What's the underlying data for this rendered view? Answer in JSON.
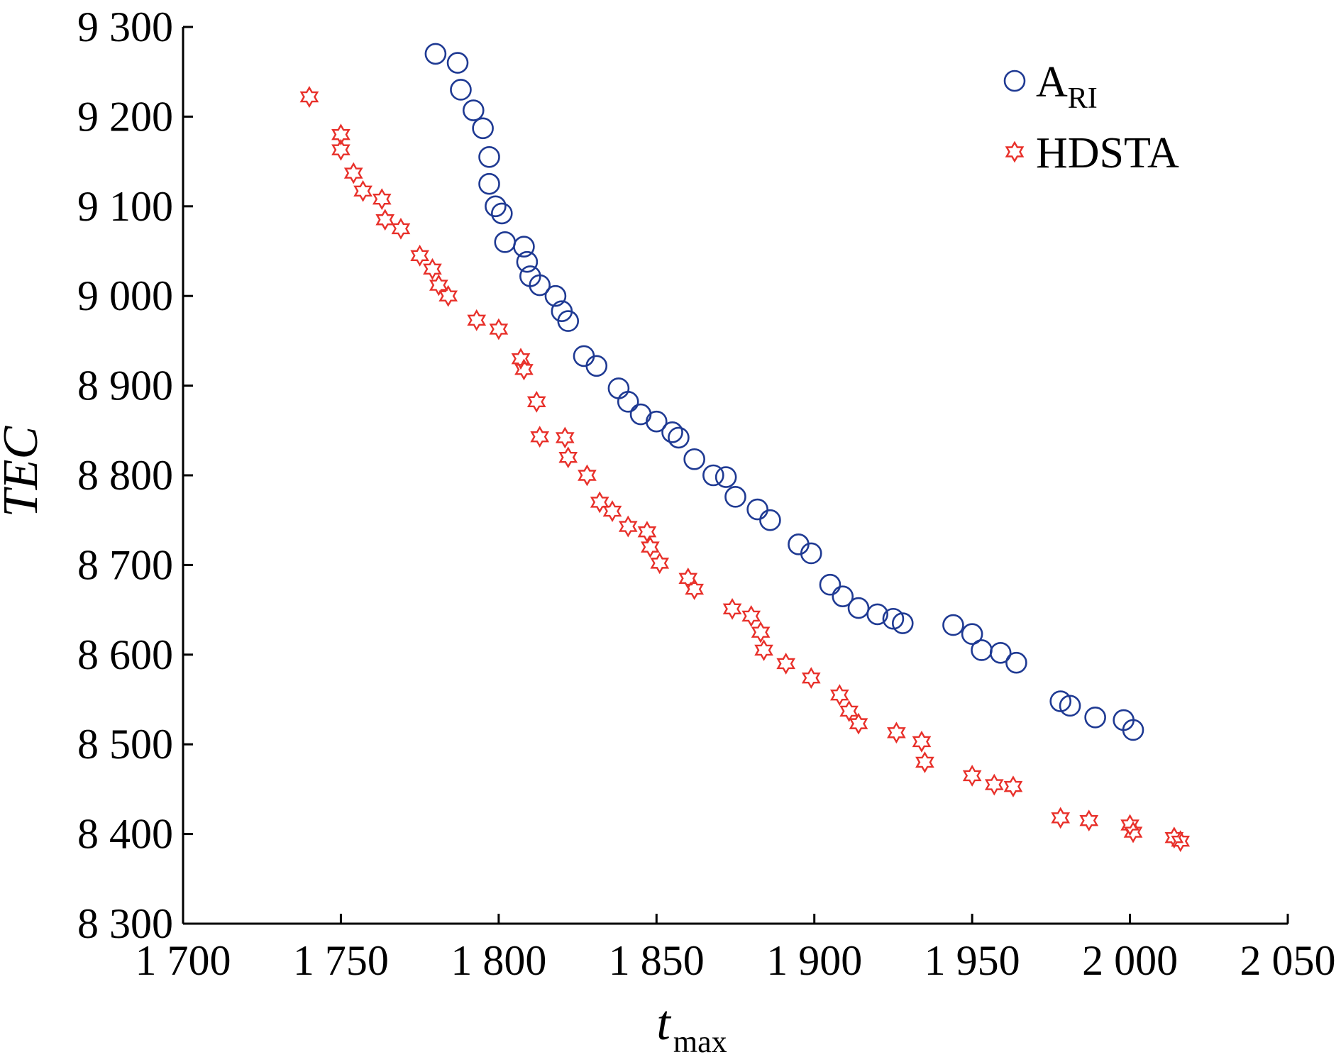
{
  "chart_data": {
    "type": "scatter",
    "title": "",
    "xlabel": "t",
    "xlabel_subscript": "max",
    "ylabel": "TEC",
    "xlim": [
      1700,
      2050
    ],
    "ylim": [
      8300,
      9300
    ],
    "xticks": [
      1700,
      1750,
      1800,
      1850,
      1900,
      1950,
      2000,
      2050
    ],
    "yticks": [
      8300,
      8400,
      8500,
      8600,
      8700,
      8800,
      8900,
      9000,
      9100,
      9200,
      9300
    ],
    "xtick_labels": [
      "1 700",
      "1 750",
      "1 800",
      "1 850",
      "1 900",
      "1 950",
      "2 000",
      "2 050"
    ],
    "ytick_labels": [
      "8 300",
      "8 400",
      "8 500",
      "8 600",
      "8 700",
      "8 800",
      "8 900",
      "9 000",
      "9 100",
      "9 200",
      "9 300"
    ],
    "grid": false,
    "legend_position": "top-right",
    "series": [
      {
        "name": "A",
        "name_subscript": "RI",
        "marker": "circle",
        "color": "#1f3a93",
        "points": [
          [
            1780,
            9270
          ],
          [
            1787,
            9260
          ],
          [
            1788,
            9230
          ],
          [
            1792,
            9207
          ],
          [
            1795,
            9187
          ],
          [
            1797,
            9155
          ],
          [
            1797,
            9125
          ],
          [
            1799,
            9100
          ],
          [
            1801,
            9092
          ],
          [
            1802,
            9060
          ],
          [
            1808,
            9055
          ],
          [
            1809,
            9038
          ],
          [
            1810,
            9022
          ],
          [
            1813,
            9012
          ],
          [
            1818,
            9000
          ],
          [
            1820,
            8983
          ],
          [
            1822,
            8972
          ],
          [
            1827,
            8933
          ],
          [
            1831,
            8922
          ],
          [
            1838,
            8897
          ],
          [
            1841,
            8882
          ],
          [
            1845,
            8868
          ],
          [
            1850,
            8860
          ],
          [
            1855,
            8848
          ],
          [
            1857,
            8842
          ],
          [
            1862,
            8818
          ],
          [
            1868,
            8800
          ],
          [
            1872,
            8798
          ],
          [
            1875,
            8776
          ],
          [
            1882,
            8762
          ],
          [
            1886,
            8750
          ],
          [
            1895,
            8723
          ],
          [
            1899,
            8713
          ],
          [
            1905,
            8678
          ],
          [
            1909,
            8665
          ],
          [
            1914,
            8652
          ],
          [
            1920,
            8645
          ],
          [
            1925,
            8640
          ],
          [
            1928,
            8635
          ],
          [
            1944,
            8633
          ],
          [
            1950,
            8623
          ],
          [
            1953,
            8605
          ],
          [
            1959,
            8602
          ],
          [
            1964,
            8591
          ],
          [
            1978,
            8548
          ],
          [
            1981,
            8543
          ],
          [
            1989,
            8530
          ],
          [
            1998,
            8527
          ],
          [
            2001,
            8516
          ]
        ]
      },
      {
        "name": "HDSTA",
        "marker": "star",
        "color": "#e8302a",
        "points": [
          [
            1740,
            9222
          ],
          [
            1750,
            9180
          ],
          [
            1750,
            9163
          ],
          [
            1754,
            9137
          ],
          [
            1757,
            9117
          ],
          [
            1763,
            9108
          ],
          [
            1764,
            9085
          ],
          [
            1769,
            9075
          ],
          [
            1775,
            9045
          ],
          [
            1779,
            9030
          ],
          [
            1781,
            9012
          ],
          [
            1784,
            9000
          ],
          [
            1793,
            8973
          ],
          [
            1800,
            8963
          ],
          [
            1807,
            8930
          ],
          [
            1808,
            8918
          ],
          [
            1812,
            8882
          ],
          [
            1813,
            8843
          ],
          [
            1821,
            8842
          ],
          [
            1822,
            8820
          ],
          [
            1828,
            8800
          ],
          [
            1832,
            8770
          ],
          [
            1836,
            8760
          ],
          [
            1841,
            8743
          ],
          [
            1847,
            8737
          ],
          [
            1848,
            8720
          ],
          [
            1851,
            8702
          ],
          [
            1860,
            8685
          ],
          [
            1862,
            8673
          ],
          [
            1874,
            8651
          ],
          [
            1880,
            8643
          ],
          [
            1883,
            8625
          ],
          [
            1884,
            8605
          ],
          [
            1891,
            8590
          ],
          [
            1899,
            8574
          ],
          [
            1908,
            8555
          ],
          [
            1911,
            8537
          ],
          [
            1914,
            8523
          ],
          [
            1926,
            8513
          ],
          [
            1934,
            8503
          ],
          [
            1935,
            8480
          ],
          [
            1950,
            8465
          ],
          [
            1957,
            8455
          ],
          [
            1963,
            8453
          ],
          [
            1978,
            8418
          ],
          [
            1987,
            8415
          ],
          [
            2000,
            8410
          ],
          [
            2001,
            8402
          ],
          [
            2014,
            8396
          ],
          [
            2016,
            8392
          ]
        ]
      }
    ]
  }
}
